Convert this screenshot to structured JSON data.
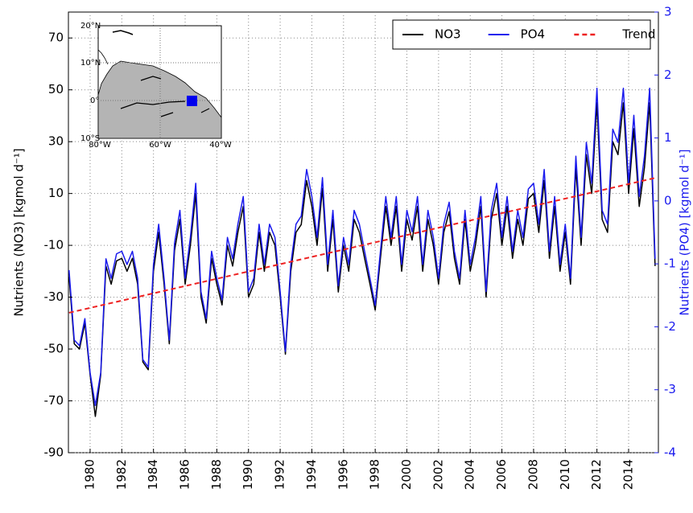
{
  "chart_data": {
    "type": "line",
    "x": [
      1978.67,
      1979.0,
      1979.33,
      1979.67,
      1980.0,
      1980.33,
      1980.67,
      1981.0,
      1981.33,
      1981.67,
      1982.0,
      1982.33,
      1982.67,
      1983.0,
      1983.33,
      1983.67,
      1984.0,
      1984.33,
      1984.67,
      1985.0,
      1985.33,
      1985.67,
      1986.0,
      1986.33,
      1986.67,
      1987.0,
      1987.33,
      1987.67,
      1988.0,
      1988.33,
      1988.67,
      1989.0,
      1989.33,
      1989.67,
      1990.0,
      1990.33,
      1990.67,
      1991.0,
      1991.33,
      1991.67,
      1992.0,
      1992.33,
      1992.67,
      1993.0,
      1993.33,
      1993.67,
      1994.0,
      1994.33,
      1994.67,
      1995.0,
      1995.33,
      1995.67,
      1996.0,
      1996.33,
      1996.67,
      1997.0,
      1997.33,
      1997.67,
      1998.0,
      1998.33,
      1998.67,
      1999.0,
      1999.33,
      1999.67,
      2000.0,
      2000.33,
      2000.67,
      2001.0,
      2001.33,
      2001.67,
      2002.0,
      2002.33,
      2002.67,
      2003.0,
      2003.33,
      2003.67,
      2004.0,
      2004.33,
      2004.67,
      2005.0,
      2005.33,
      2005.67,
      2006.0,
      2006.33,
      2006.67,
      2007.0,
      2007.33,
      2007.67,
      2008.0,
      2008.33,
      2008.67,
      2009.0,
      2009.33,
      2009.67,
      2010.0,
      2010.33,
      2010.67,
      2011.0,
      2011.33,
      2011.67,
      2012.0,
      2012.33,
      2012.67,
      2013.0,
      2013.33,
      2013.67,
      2014.0,
      2014.33,
      2014.67,
      2015.0,
      2015.33,
      2015.67
    ],
    "series": [
      {
        "name": "NO3",
        "color": "#000000",
        "values": [
          -22,
          -48,
          -50,
          -40,
          -60,
          -76,
          -60,
          -18,
          -25,
          -16,
          -15,
          -20,
          -15,
          -25,
          -55,
          -58,
          -20,
          -5,
          -25,
          -48,
          -12,
          0,
          -25,
          -10,
          10,
          -30,
          -40,
          -15,
          -25,
          -33,
          -10,
          -18,
          -5,
          5,
          -30,
          -25,
          -5,
          -20,
          -5,
          -10,
          -30,
          -52,
          -20,
          -5,
          -2,
          15,
          5,
          -10,
          12,
          -20,
          0,
          -28,
          -10,
          -20,
          0,
          -5,
          -15,
          -25,
          -35,
          -15,
          5,
          -10,
          5,
          -20,
          0,
          -8,
          5,
          -20,
          0,
          -10,
          -25,
          -5,
          3,
          -15,
          -25,
          0,
          -20,
          -10,
          5,
          -30,
          0,
          10,
          -10,
          5,
          -15,
          0,
          -10,
          8,
          10,
          -5,
          15,
          -15,
          5,
          -20,
          -5,
          -25,
          20,
          -10,
          25,
          10,
          45,
          0,
          -5,
          30,
          25,
          45,
          10,
          35,
          5,
          20,
          45,
          -18
        ]
      },
      {
        "name": "PO4",
        "color": "#1a1aee",
        "axis": "y2",
        "values": [
          -1.1,
          -2.21,
          -2.3,
          -1.87,
          -2.73,
          -3.25,
          -2.73,
          -0.92,
          -1.23,
          -0.84,
          -0.8,
          -1.01,
          -0.8,
          -1.23,
          -2.52,
          -2.64,
          -1.01,
          -0.37,
          -1.23,
          -2.21,
          -0.67,
          -0.15,
          -1.23,
          -0.58,
          0.28,
          -1.44,
          -1.87,
          -0.8,
          -1.23,
          -1.57,
          -0.58,
          -0.92,
          -0.37,
          0.07,
          -1.44,
          -1.23,
          -0.37,
          -1.01,
          -0.37,
          -0.58,
          -1.44,
          -2.39,
          -1.01,
          -0.37,
          -0.24,
          0.5,
          0.07,
          -0.58,
          0.37,
          -1.01,
          -0.15,
          -1.35,
          -0.58,
          -1.01,
          -0.15,
          -0.37,
          -0.8,
          -1.23,
          -1.66,
          -0.8,
          0.07,
          -0.58,
          0.07,
          -1.01,
          -0.15,
          -0.49,
          0.07,
          -1.01,
          -0.15,
          -0.58,
          -1.23,
          -0.37,
          -0.02,
          -0.8,
          -1.23,
          -0.15,
          -1.01,
          -0.58,
          0.07,
          -1.44,
          -0.15,
          0.28,
          -0.58,
          0.07,
          -0.8,
          -0.15,
          -0.58,
          0.19,
          0.28,
          -0.37,
          0.5,
          -0.8,
          0.07,
          -1.01,
          -0.37,
          -1.23,
          0.71,
          -0.58,
          0.93,
          0.28,
          1.79,
          -0.15,
          -0.37,
          1.14,
          0.93,
          1.79,
          0.28,
          1.36,
          0.07,
          0.71,
          1.79,
          -0.92
        ]
      },
      {
        "name": "Trend",
        "color": "#ee2222",
        "linestyle": "dashed",
        "x": [
          1978.67,
          2015.67
        ],
        "values": [
          -36,
          16
        ]
      }
    ],
    "ylabel": "Nutrients (NO3) [kgmol d⁻¹]",
    "y2label": "Nutrients (PO4) [kgmol d⁻¹]",
    "xlim": [
      1978.63,
      2015.88
    ],
    "xticks": [
      1980,
      1982,
      1984,
      1986,
      1988,
      1990,
      1992,
      1994,
      1996,
      1998,
      2000,
      2002,
      2004,
      2006,
      2008,
      2010,
      2012,
      2014
    ],
    "ylim": [
      -90,
      80
    ],
    "yticks": [
      -90,
      -70,
      -50,
      -30,
      -10,
      10,
      30,
      50,
      70
    ],
    "y2lim": [
      -4,
      3
    ],
    "y2ticks": [
      -4,
      -3,
      -2,
      -1,
      0,
      1,
      2,
      3
    ],
    "grid": true,
    "legend": "upper right"
  },
  "inset": {
    "lat_labels": [
      "20°N",
      "10°N",
      "0°",
      "10°S"
    ],
    "lon_labels": [
      "80°W",
      "60°W",
      "40°W"
    ]
  }
}
